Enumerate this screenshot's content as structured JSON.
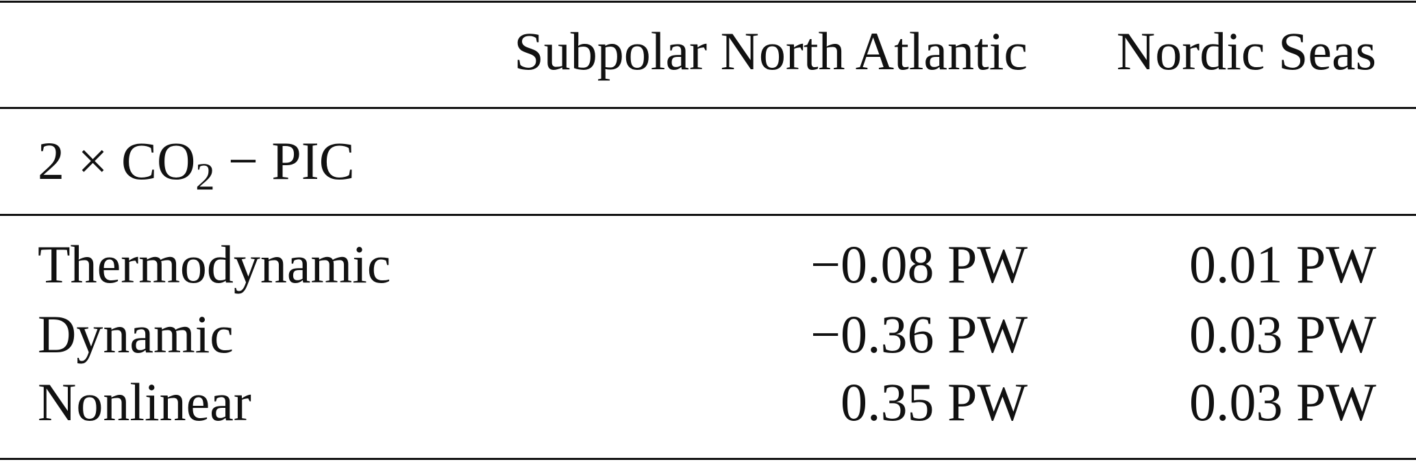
{
  "table": {
    "header": [
      "Subpolar North Atlantic",
      "Nordic Seas"
    ],
    "section": {
      "pre": "2 × CO",
      "sub": "2",
      "post": " − PIC"
    },
    "rows": [
      [
        "Thermodynamic",
        "−0.08 PW",
        "0.01 PW"
      ],
      [
        "Dynamic",
        "−0.36 PW",
        "0.03 PW"
      ],
      [
        "Nonlinear",
        "0.35 PW",
        "0.03 PW"
      ]
    ]
  }
}
